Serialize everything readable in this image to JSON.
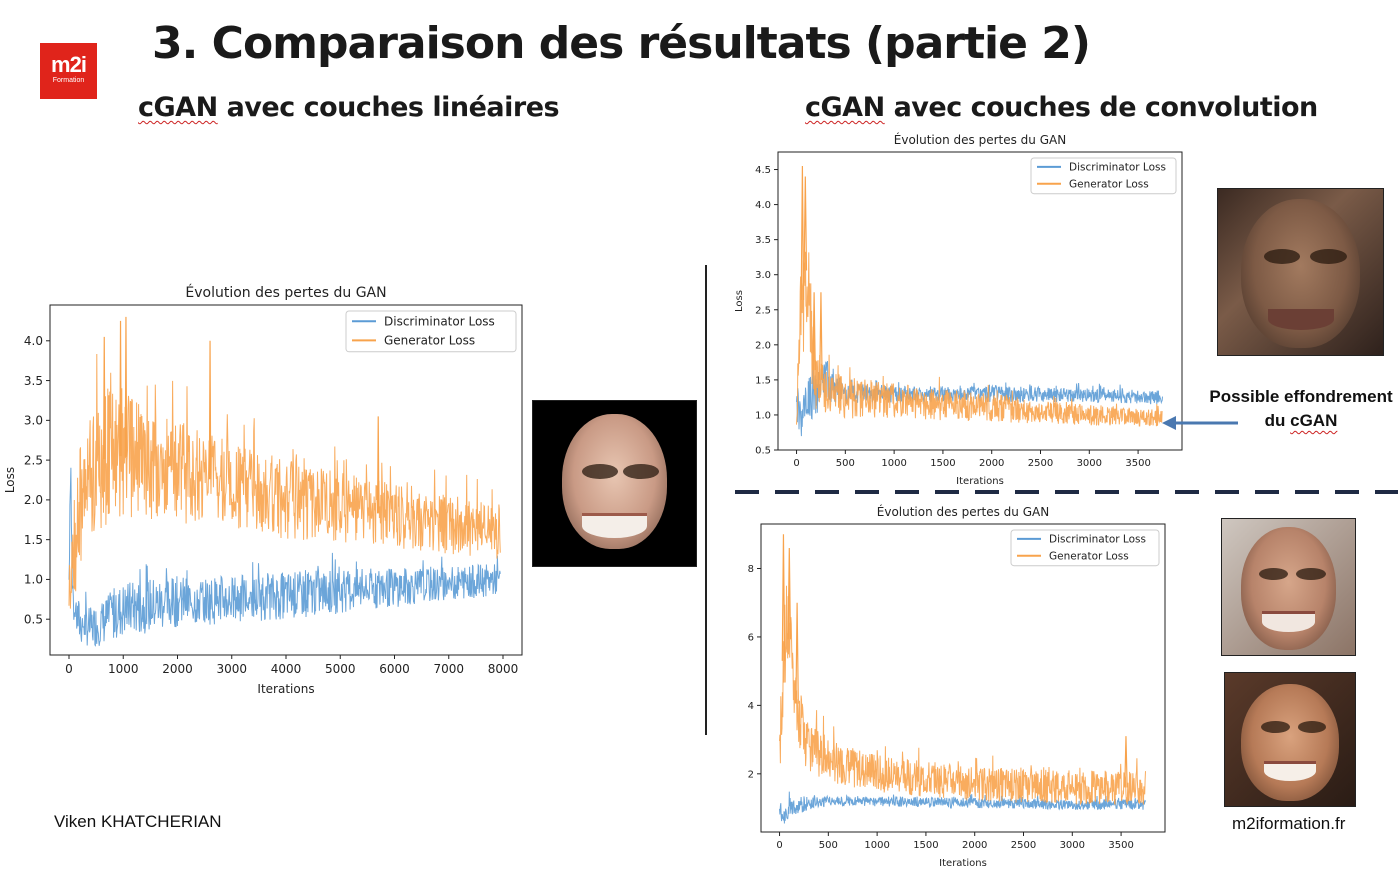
{
  "brand": {
    "logo_main": "m2i",
    "logo_sub": "Formation"
  },
  "title": "3. Comparaison des résultats (partie 2)",
  "left_heading": {
    "prefix": "cGAN",
    "rest": " avec couches linéaires"
  },
  "right_heading": {
    "prefix": "cGAN",
    "rest": " avec couches de convolution"
  },
  "annotation": {
    "line1": "Possible effondrement",
    "line2_prefix": "du ",
    "line2_word": "cGAN"
  },
  "footer": {
    "author": "Viken KHATCHERIAN",
    "website": "m2iformation.fr"
  },
  "colors": {
    "discriminator": "#5b9bd5",
    "generator": "#f8a34c",
    "accent_red": "#e0241b",
    "dash": "#1f2a44"
  },
  "chart_data": [
    {
      "type": "line",
      "title": "Évolution des pertes du GAN",
      "xlabel": "Iterations",
      "ylabel": "Loss",
      "xlim": [
        -350,
        8350
      ],
      "ylim": [
        0.05,
        4.45
      ],
      "xticks": [
        0,
        1000,
        2000,
        3000,
        4000,
        5000,
        6000,
        7000,
        8000
      ],
      "yticks": [
        0.5,
        1.0,
        1.5,
        2.0,
        2.5,
        3.0,
        3.5,
        4.0
      ],
      "ytick_labels": [
        "0.5",
        "1.0",
        "1.5",
        "2.0",
        "2.5",
        "3.0",
        "3.5",
        "4.0"
      ],
      "legend": "upper right",
      "x_max": 7950,
      "series": [
        {
          "name": "Discriminator Loss",
          "color": "#5b9bd5",
          "x": [
            0,
            30,
            60,
            100,
            200,
            400,
            600,
            800,
            1000,
            1500,
            2000,
            3000,
            4000,
            5000,
            6000,
            7000,
            7950
          ],
          "y": [
            1.0,
            2.65,
            0.9,
            0.6,
            0.45,
            0.4,
            0.45,
            0.55,
            0.62,
            0.68,
            0.72,
            0.75,
            0.8,
            0.85,
            0.9,
            0.95,
            1.0
          ],
          "spread": [
            0.25,
            0.4,
            0.3,
            0.3,
            0.28,
            0.25,
            0.28,
            0.32,
            0.35,
            0.35,
            0.32,
            0.3,
            0.3,
            0.28,
            0.25,
            0.22,
            0.2
          ]
        },
        {
          "name": "Generator Loss",
          "color": "#f8a34c",
          "x": [
            0,
            100,
            200,
            400,
            600,
            800,
            1000,
            1500,
            2000,
            3000,
            4000,
            5000,
            6000,
            7000,
            7950
          ],
          "y": [
            1.0,
            1.4,
            1.9,
            2.3,
            2.5,
            2.55,
            2.55,
            2.45,
            2.35,
            2.2,
            2.0,
            1.9,
            1.8,
            1.7,
            1.6
          ],
          "spread": [
            0.5,
            0.7,
            0.8,
            0.85,
            0.85,
            0.85,
            0.8,
            0.7,
            0.65,
            0.55,
            0.5,
            0.45,
            0.4,
            0.38,
            0.35
          ],
          "peaks": [
            [
              950,
              4.25
            ],
            [
              1050,
              4.3
            ],
            [
              2600,
              4.0
            ],
            [
              650,
              4.05
            ],
            [
              5700,
              3.05
            ]
          ]
        }
      ]
    },
    {
      "type": "line",
      "title": "Évolution des pertes du GAN",
      "xlabel": "Iterations",
      "ylabel": "Loss",
      "xlim": [
        -190,
        3950
      ],
      "ylim": [
        0.5,
        4.75
      ],
      "xticks": [
        0,
        500,
        1000,
        1500,
        2000,
        2500,
        3000,
        3500
      ],
      "yticks": [
        0.5,
        1.0,
        1.5,
        2.0,
        2.5,
        3.0,
        3.5,
        4.0,
        4.5
      ],
      "ytick_labels": [
        "0.5",
        "1.0",
        "1.5",
        "2.0",
        "2.5",
        "3.0",
        "3.5",
        "4.0",
        "4.5"
      ],
      "legend": "upper right",
      "x_max": 3750,
      "series": [
        {
          "name": "Discriminator Loss",
          "color": "#5b9bd5",
          "x": [
            0,
            50,
            100,
            200,
            300,
            500,
            1000,
            2000,
            3000,
            3750
          ],
          "y": [
            1.2,
            0.85,
            1.2,
            1.3,
            1.5,
            1.3,
            1.3,
            1.3,
            1.28,
            1.25
          ],
          "spread": [
            0.3,
            0.2,
            0.3,
            0.35,
            0.3,
            0.15,
            0.12,
            0.12,
            0.1,
            0.1
          ]
        },
        {
          "name": "Generator Loss",
          "color": "#f8a34c",
          "x": [
            0,
            50,
            100,
            150,
            200,
            250,
            300,
            500,
            1000,
            2000,
            3000,
            3750
          ],
          "y": [
            1.0,
            2.5,
            3.2,
            2.0,
            1.4,
            1.5,
            1.3,
            1.25,
            1.2,
            1.1,
            1.0,
            0.95
          ],
          "spread": [
            0.2,
            0.9,
            0.9,
            0.6,
            0.4,
            0.4,
            0.35,
            0.3,
            0.25,
            0.2,
            0.15,
            0.12
          ],
          "peaks": [
            [
              60,
              4.55
            ],
            [
              90,
              4.4
            ],
            [
              180,
              2.75
            ],
            [
              250,
              2.75
            ]
          ]
        }
      ]
    },
    {
      "type": "line",
      "title": "Évolution des pertes du GAN",
      "xlabel": "Iterations",
      "ylabel": "Loss",
      "xlim": [
        -190,
        3950
      ],
      "ylim": [
        0.3,
        9.3
      ],
      "xticks": [
        0,
        500,
        1000,
        1500,
        2000,
        2500,
        3000,
        3500
      ],
      "yticks": [
        2,
        4,
        6,
        8
      ],
      "ytick_labels": [
        "2",
        "4",
        "6",
        "8"
      ],
      "legend": "upper right",
      "x_max": 3750,
      "series": [
        {
          "name": "Discriminator Loss",
          "color": "#5b9bd5",
          "x": [
            0,
            50,
            100,
            200,
            500,
            1000,
            2000,
            3000,
            3750
          ],
          "y": [
            1.0,
            0.7,
            1.0,
            1.1,
            1.2,
            1.2,
            1.15,
            1.1,
            1.1
          ],
          "spread": [
            0.3,
            0.2,
            0.3,
            0.25,
            0.15,
            0.15,
            0.15,
            0.15,
            0.15
          ]
        },
        {
          "name": "Generator Loss",
          "color": "#f8a34c",
          "x": [
            0,
            30,
            80,
            150,
            250,
            400,
            600,
            1000,
            2000,
            3000,
            3750
          ],
          "y": [
            2.0,
            5.0,
            6.5,
            4.5,
            3.0,
            2.6,
            2.3,
            2.0,
            1.7,
            1.6,
            1.6
          ],
          "spread": [
            0.8,
            1.5,
            1.4,
            1.0,
            0.8,
            0.7,
            0.6,
            0.55,
            0.5,
            0.5,
            0.5
          ],
          "peaks": [
            [
              40,
              9.0
            ],
            [
              100,
              8.6
            ],
            [
              180,
              7.0
            ],
            [
              3550,
              3.1
            ]
          ]
        }
      ]
    }
  ]
}
